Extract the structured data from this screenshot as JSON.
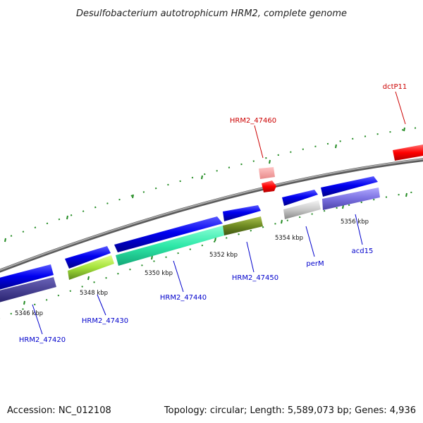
{
  "title": "Desulfobacterium autotrophicum HRM2, complete genome",
  "footer": {
    "accession": "Accession: NC_012108",
    "summary": "Topology: circular; Length: 5,589,073 bp; Genes: 4,936"
  },
  "ticks": [
    "5346 kbp",
    "5348 kbp",
    "5350 kbp",
    "5352 kbp",
    "5354 kbp",
    "5356 kbp"
  ],
  "genes": [
    {
      "name": "HRM2_47420",
      "color": "#0000cc"
    },
    {
      "name": "HRM2_47430",
      "color": "#0000cc"
    },
    {
      "name": "HRM2_47440",
      "color": "#0000cc"
    },
    {
      "name": "HRM2_47450",
      "color": "#0000cc"
    },
    {
      "name": "perM",
      "color": "#0000cc"
    },
    {
      "name": "acd15",
      "color": "#0000cc"
    },
    {
      "name": "HRM2_47460",
      "color": "#cc0000"
    },
    {
      "name": "dctP11",
      "color": "#cc0000"
    }
  ],
  "colors": {
    "forward_cds": "#0000ff",
    "reverse_cds": "#ff0000",
    "backbone": "#888888",
    "tick_marks": "#228b22"
  }
}
